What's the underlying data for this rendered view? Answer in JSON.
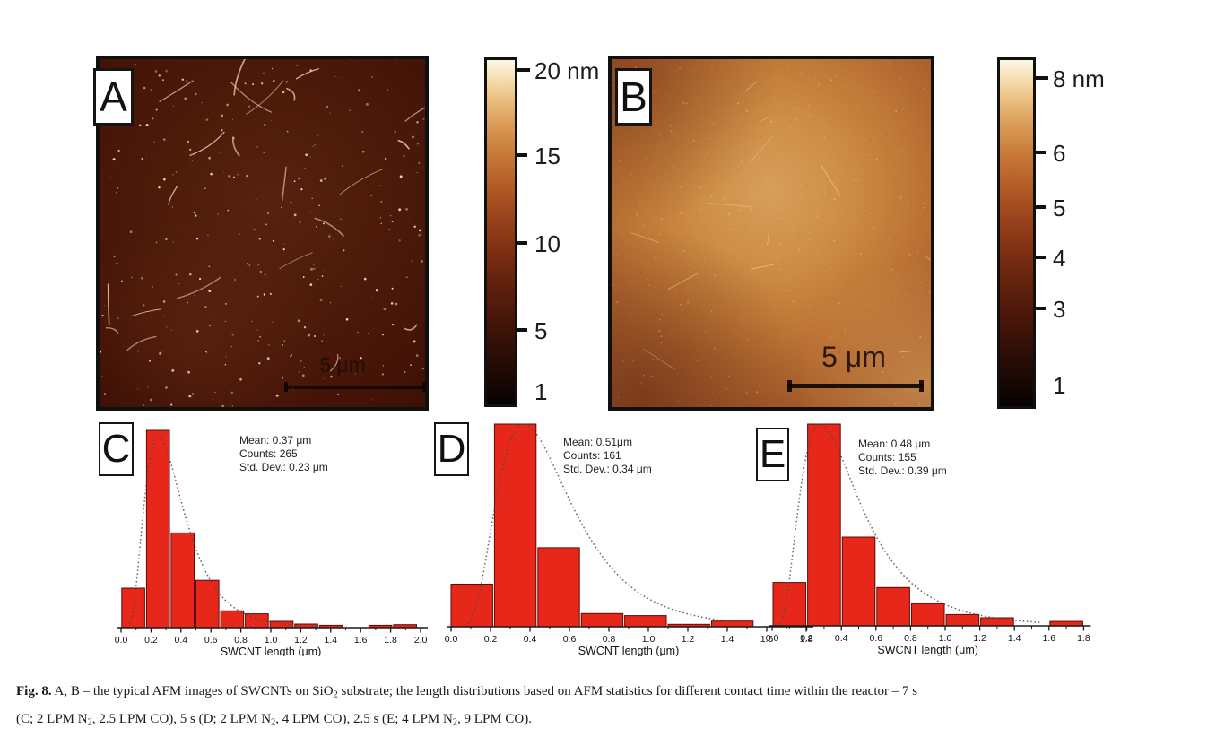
{
  "figure": {
    "panels": [
      {
        "label": "A",
        "scale_bar_label": "5 μm"
      },
      {
        "label": "B",
        "scale_bar_label": "5 μm"
      }
    ],
    "colorbars": [
      {
        "panel": "A",
        "unit": "nm",
        "ticks": [
          {
            "label": "20 nm",
            "pos": 0.035,
            "tick": true
          },
          {
            "label": "15",
            "pos": 0.28,
            "tick": true
          },
          {
            "label": "10",
            "pos": 0.53,
            "tick": true
          },
          {
            "label": "5",
            "pos": 0.78,
            "tick": true
          },
          {
            "label": "1",
            "pos": 0.955,
            "tick": false
          }
        ]
      },
      {
        "panel": "B",
        "unit": "nm",
        "ticks": [
          {
            "label": "8 nm",
            "pos": 0.058,
            "tick": true
          },
          {
            "label": "6",
            "pos": 0.27,
            "tick": true
          },
          {
            "label": "5",
            "pos": 0.425,
            "tick": true
          },
          {
            "label": "4",
            "pos": 0.57,
            "tick": true
          },
          {
            "label": "3",
            "pos": 0.715,
            "tick": true
          },
          {
            "label": "1",
            "pos": 0.93,
            "tick": false
          }
        ]
      }
    ],
    "caption": {
      "lines": [
        {
          "segments": [
            {
              "text": "Fig. 8.",
              "bold": true
            },
            {
              "text": " A, B – the typical AFM images of SWCNTs on SiO"
            },
            {
              "text": "2",
              "sub": true
            },
            {
              "text": " substrate; the length distributions based on AFM statistics for different contact time within the reactor – 7 s"
            }
          ]
        },
        {
          "segments": [
            {
              "text": "(C; 2 LPM N"
            },
            {
              "text": "2",
              "sub": true
            },
            {
              "text": ", 2.5 LPM CO), 5 s (D; 2 LPM N"
            },
            {
              "text": "2",
              "sub": true
            },
            {
              "text": ", 4 LPM CO), 2.5 s (E; 4 LPM N"
            },
            {
              "text": "2",
              "sub": true
            },
            {
              "text": ", 9 LPM CO)."
            }
          ]
        }
      ]
    },
    "colors": {
      "bar_red": "#e8271b",
      "bar_edge": "#5f0a04",
      "colormap_low": "#060202",
      "colormap_high": "#fdf6e6"
    }
  },
  "chart_data": [
    {
      "type": "bar",
      "panel_label": "C",
      "xlabel": "SWCNT length (μm)",
      "xlim": [
        0.0,
        2.0
      ],
      "x_tick_labels": [
        "0.0",
        "0.2",
        "0.4",
        "0.6",
        "0.8",
        "1.0",
        "1.2",
        "1.4",
        "1.6",
        "1.8",
        "2.0"
      ],
      "bin_start": 0.005,
      "bin_width": 0.165,
      "heights_pct_of_max": [
        20,
        100,
        48,
        24,
        8.5,
        7,
        3.2,
        1.8,
        1.2,
        0,
        1.2,
        1.5
      ],
      "annotations": {
        "mean": "Mean: 0.37 μm",
        "counts": "Counts: 265",
        "std": "Std. Dev.: 0.23 μm"
      },
      "fit_curve": {
        "style": "dotted",
        "mode_um": 0.25,
        "log_sigma": 0.52,
        "peak_pct": 97,
        "x_end": 1.6
      },
      "legend": null,
      "grid": false
    },
    {
      "type": "bar",
      "panel_label": "D",
      "xlabel": "SWCNT length (μm)",
      "xlim": [
        0.0,
        1.8
      ],
      "x_tick_labels": [
        "0.0",
        "0.2",
        "0.4",
        "0.6",
        "0.8",
        "1.0",
        "1.2",
        "1.4",
        "1.6",
        "1.8"
      ],
      "bin_start": 0.0,
      "bin_width": 0.22,
      "heights_pct_of_max": [
        21,
        100,
        39,
        6.5,
        5.5,
        1.2,
        2.8
      ],
      "annotations": {
        "mean": "Mean: 0.51μm",
        "counts": "Counts: 161",
        "std": "Std. Dev.: 0.34 μm"
      },
      "fit_curve": {
        "style": "dotted",
        "mode_um": 0.37,
        "log_sigma": 0.5,
        "peak_pct": 100,
        "x_end": 1.45
      },
      "legend": null,
      "grid": false
    },
    {
      "type": "bar",
      "panel_label": "E",
      "xlabel": "SWCNT length (μm)",
      "xlim": [
        0.0,
        1.8
      ],
      "x_tick_labels": [
        "0.0",
        "0.2",
        "0.4",
        "0.6",
        "0.8",
        "1.0",
        "1.2",
        "1.4",
        "1.6",
        "1.8"
      ],
      "bin_start": 0.005,
      "bin_width": 0.2,
      "heights_pct_of_max": [
        21.5,
        100,
        44,
        19,
        11,
        5.6,
        4,
        0,
        2.2
      ],
      "annotations": {
        "mean": "Mean: 0.48 μm",
        "counts": "Counts: 155",
        "std": "Std. Dev.: 0.39 μm"
      },
      "fit_curve": {
        "style": "dotted",
        "mode_um": 0.28,
        "log_sigma": 0.6,
        "peak_pct": 100,
        "x_end": 1.55
      },
      "legend": null,
      "grid": false
    }
  ]
}
